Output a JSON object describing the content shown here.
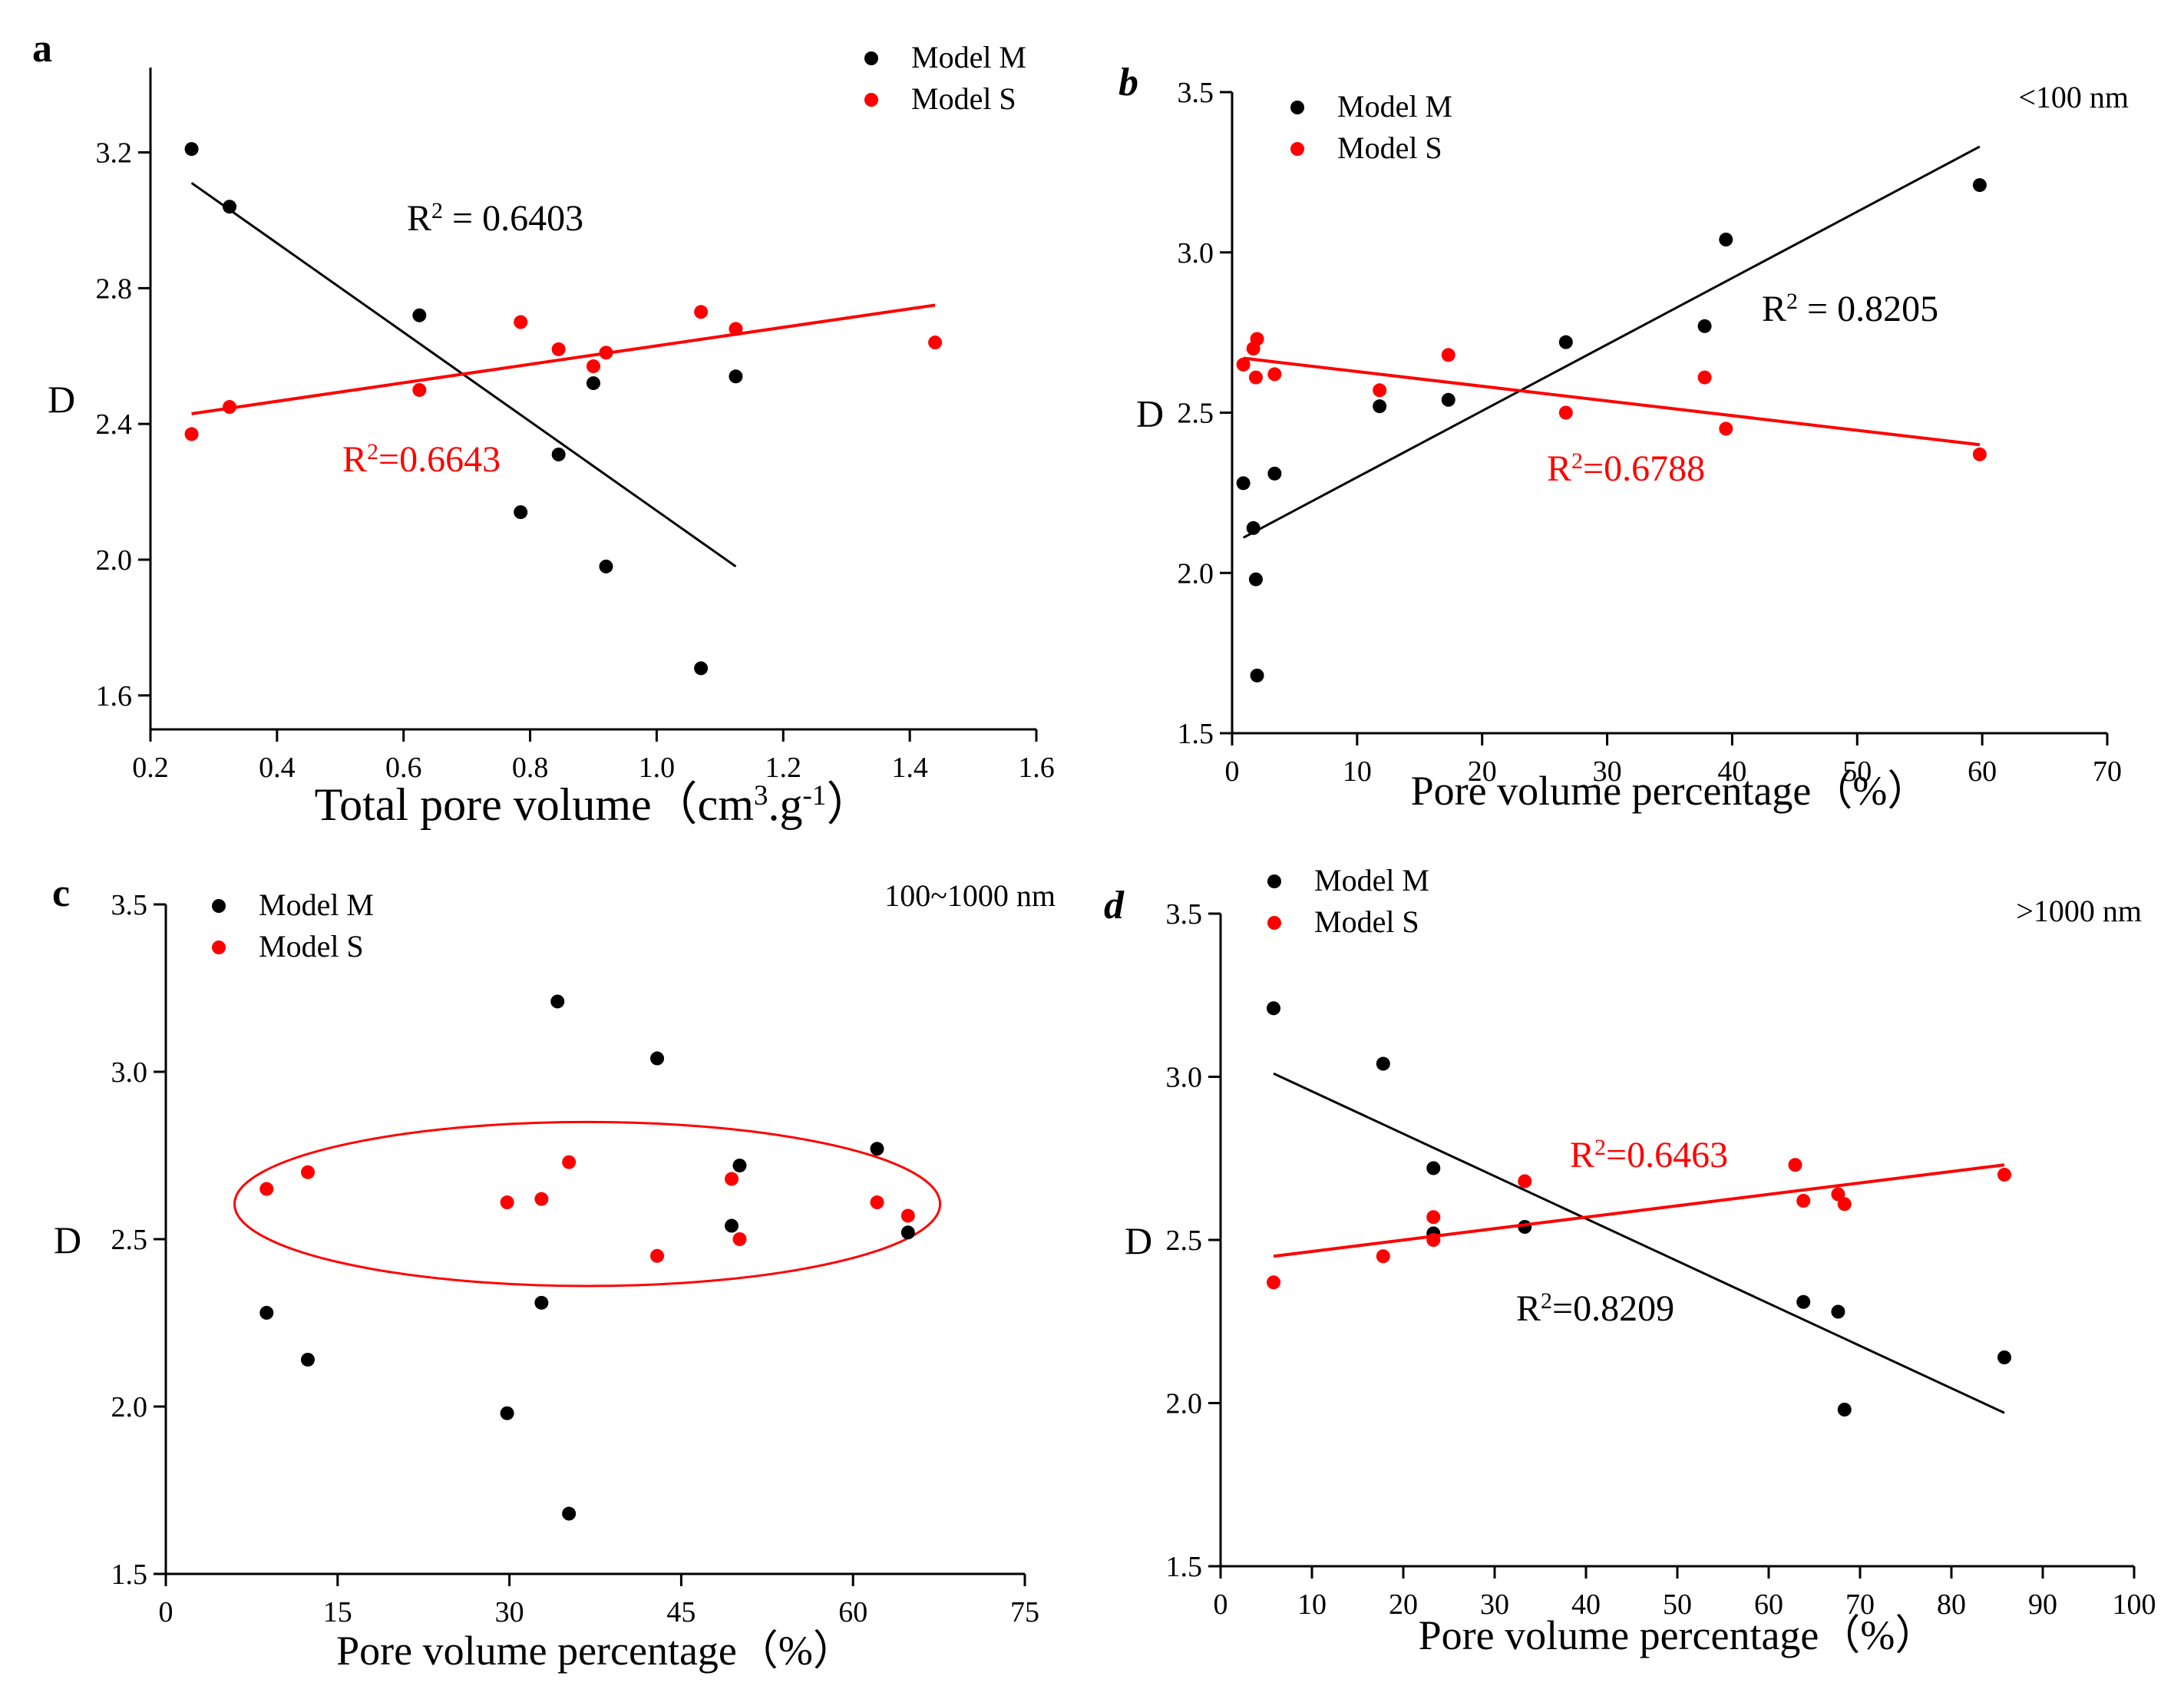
{
  "colors": {
    "model_m": "#000000",
    "model_s": "#ff0000",
    "axis": "#000000"
  },
  "chart_data": [
    {
      "id": "a",
      "panel_label": "a",
      "type": "scatter",
      "xlabel_parts": [
        "Total pore volume（cm",
        "3",
        ".g",
        "-1",
        "）"
      ],
      "ylabel": "D",
      "range_note": "",
      "xlim": [
        0.2,
        1.6
      ],
      "ylim": [
        1.5,
        3.45
      ],
      "xticks": [
        0.2,
        0.4,
        0.6,
        0.8,
        1.0,
        1.2,
        1.4,
        1.6
      ],
      "xtick_labels": [
        "0.2",
        "0.4",
        "0.6",
        "0.8",
        "1.0",
        "1.2",
        "1.4",
        "1.6"
      ],
      "yticks": [
        1.6,
        2.0,
        2.4,
        2.8,
        3.2
      ],
      "ytick_labels": [
        "1.6",
        "2.0",
        "2.4",
        "2.8",
        "3.2"
      ],
      "legend": [
        "Model M",
        "Model S"
      ],
      "series": [
        {
          "name": "Model M",
          "color": "#000000",
          "points": [
            [
              0.265,
              3.21
            ],
            [
              0.325,
              3.04
            ],
            [
              0.625,
              2.72
            ],
            [
              0.785,
              2.14
            ],
            [
              0.845,
              2.31
            ],
            [
              0.9,
              2.52
            ],
            [
              0.92,
              1.98
            ],
            [
              1.07,
              1.68
            ],
            [
              1.125,
              2.54
            ]
          ],
          "fit": [
            [
              0.265,
              3.11
            ],
            [
              1.125,
              1.98
            ]
          ],
          "r2_parts": [
            "R",
            "2",
            " = 0.6403"
          ]
        },
        {
          "name": "Model S",
          "color": "#ff0000",
          "points": [
            [
              0.265,
              2.37
            ],
            [
              0.325,
              2.45
            ],
            [
              0.625,
              2.5
            ],
            [
              0.785,
              2.7
            ],
            [
              0.845,
              2.62
            ],
            [
              0.9,
              2.57
            ],
            [
              0.92,
              2.61
            ],
            [
              1.07,
              2.73
            ],
            [
              1.125,
              2.68
            ],
            [
              1.44,
              2.64
            ]
          ],
          "fit": [
            [
              0.265,
              2.43
            ],
            [
              1.44,
              2.75
            ]
          ],
          "r2_parts": [
            "R",
            "2",
            "=0.6643"
          ]
        }
      ]
    },
    {
      "id": "b",
      "panel_label": "b",
      "type": "scatter",
      "xlabel_parts": [
        "Pore volume percentage（%）"
      ],
      "ylabel": "D",
      "range_note": "<100 nm",
      "xlim": [
        0,
        70
      ],
      "ylim": [
        1.5,
        3.5
      ],
      "xticks": [
        0,
        10,
        20,
        30,
        40,
        50,
        60,
        70
      ],
      "xtick_labels": [
        "0",
        "10",
        "20",
        "30",
        "40",
        "50",
        "60",
        "70"
      ],
      "yticks": [
        1.5,
        2.0,
        2.5,
        3.0,
        3.5
      ],
      "ytick_labels": [
        "1.5",
        "2.0",
        "2.5",
        "3.0",
        "3.5"
      ],
      "legend": [
        "Model  M",
        "Model  S"
      ],
      "series": [
        {
          "name": "Model  M",
          "color": "#000000",
          "points": [
            [
              0.9,
              2.28
            ],
            [
              1.7,
              2.14
            ],
            [
              1.9,
              1.98
            ],
            [
              2.0,
              1.68
            ],
            [
              3.4,
              2.31
            ],
            [
              11.8,
              2.52
            ],
            [
              17.3,
              2.54
            ],
            [
              26.7,
              2.72
            ],
            [
              37.8,
              2.77
            ],
            [
              39.5,
              3.04
            ],
            [
              59.8,
              3.21
            ]
          ],
          "fit": [
            [
              0.9,
              2.11
            ],
            [
              59.8,
              3.33
            ]
          ],
          "r2_parts": [
            "R",
            "2",
            " = 0.8205"
          ]
        },
        {
          "name": "Model  S",
          "color": "#ff0000",
          "points": [
            [
              0.9,
              2.65
            ],
            [
              1.7,
              2.7
            ],
            [
              1.9,
              2.61
            ],
            [
              2.0,
              2.73
            ],
            [
              3.4,
              2.62
            ],
            [
              11.8,
              2.57
            ],
            [
              17.3,
              2.68
            ],
            [
              26.7,
              2.5
            ],
            [
              37.8,
              2.61
            ],
            [
              39.5,
              2.45
            ],
            [
              59.8,
              2.37
            ]
          ],
          "fit": [
            [
              0.9,
              2.67
            ],
            [
              59.8,
              2.4
            ]
          ],
          "r2_parts": [
            "R",
            "2",
            "=0.6788"
          ]
        }
      ]
    },
    {
      "id": "c",
      "panel_label": "c",
      "type": "scatter",
      "xlabel_parts": [
        "Pore volume percentage（%）"
      ],
      "ylabel": "D",
      "range_note": "100~1000 nm",
      "xlim": [
        0,
        75
      ],
      "ylim": [
        1.5,
        3.5
      ],
      "xticks": [
        0,
        15,
        30,
        45,
        60,
        75
      ],
      "xtick_labels": [
        "0",
        "15",
        "30",
        "45",
        "60",
        "75"
      ],
      "yticks": [
        1.5,
        2.0,
        2.5,
        3.0,
        3.5
      ],
      "ytick_labels": [
        "1.5",
        "2.0",
        "2.5",
        "3.0",
        "3.5"
      ],
      "legend": [
        "Model M",
        "Model S"
      ],
      "series": [
        {
          "name": "Model M",
          "color": "#000000",
          "points": [
            [
              8.8,
              2.28
            ],
            [
              12.4,
              2.14
            ],
            [
              29.8,
              1.98
            ],
            [
              32.8,
              2.31
            ],
            [
              34.2,
              3.21
            ],
            [
              35.2,
              1.68
            ],
            [
              42.9,
              3.04
            ],
            [
              49.4,
              2.54
            ],
            [
              50.1,
              2.72
            ],
            [
              62.1,
              2.77
            ],
            [
              64.8,
              2.52
            ]
          ],
          "fit": null,
          "r2_parts": null
        },
        {
          "name": "Model S",
          "color": "#ff0000",
          "points": [
            [
              8.8,
              2.65
            ],
            [
              12.4,
              2.7
            ],
            [
              29.8,
              2.61
            ],
            [
              32.8,
              2.62
            ],
            [
              35.2,
              2.73
            ],
            [
              42.9,
              2.45
            ],
            [
              49.4,
              2.68
            ],
            [
              50.1,
              2.5
            ],
            [
              62.1,
              2.61
            ],
            [
              64.8,
              2.57
            ]
          ],
          "fit": null,
          "r2_parts": null
        }
      ],
      "ellipse": {
        "cx": 36.8,
        "cy": 2.605,
        "rx": 30.8,
        "ry": 0.245
      }
    },
    {
      "id": "d",
      "panel_label": "d",
      "type": "scatter",
      "xlabel_parts": [
        "Pore volume percentage（%）"
      ],
      "ylabel": "D",
      "range_note": ">1000 nm",
      "xlim": [
        0,
        100
      ],
      "ylim": [
        1.5,
        3.5
      ],
      "xticks": [
        0,
        10,
        20,
        30,
        40,
        50,
        60,
        70,
        80,
        90,
        100
      ],
      "xtick_labels": [
        "0",
        "10",
        "20",
        "30",
        "40",
        "50",
        "60",
        "70",
        "80",
        "90",
        "100"
      ],
      "yticks": [
        1.5,
        2.0,
        2.5,
        3.0,
        3.5
      ],
      "ytick_labels": [
        "1.5",
        "2.0",
        "2.5",
        "3.0",
        "3.5"
      ],
      "legend": [
        "Model M",
        "Model S"
      ],
      "series": [
        {
          "name": "Model M",
          "color": "#000000",
          "points": [
            [
              5.8,
              3.21
            ],
            [
              17.8,
              3.04
            ],
            [
              23.3,
              2.72
            ],
            [
              23.3,
              2.52
            ],
            [
              33.3,
              2.54
            ],
            [
              63.8,
              2.31
            ],
            [
              67.6,
              2.28
            ],
            [
              68.3,
              1.98
            ],
            [
              85.8,
              2.14
            ]
          ],
          "fit": [
            [
              5.8,
              3.01
            ],
            [
              85.8,
              1.97
            ]
          ],
          "r2_parts": [
            "R",
            "2",
            "=0.8209"
          ]
        },
        {
          "name": "Model S",
          "color": "#ff0000",
          "points": [
            [
              5.8,
              2.37
            ],
            [
              17.8,
              2.45
            ],
            [
              23.3,
              2.57
            ],
            [
              23.3,
              2.5
            ],
            [
              33.3,
              2.68
            ],
            [
              62.9,
              2.73
            ],
            [
              63.8,
              2.62
            ],
            [
              67.6,
              2.64
            ],
            [
              68.3,
              2.61
            ],
            [
              85.8,
              2.7
            ]
          ],
          "fit": [
            [
              5.8,
              2.45
            ],
            [
              85.8,
              2.73
            ]
          ],
          "r2_parts": [
            "R",
            "2",
            "=0.6463"
          ]
        }
      ]
    }
  ]
}
